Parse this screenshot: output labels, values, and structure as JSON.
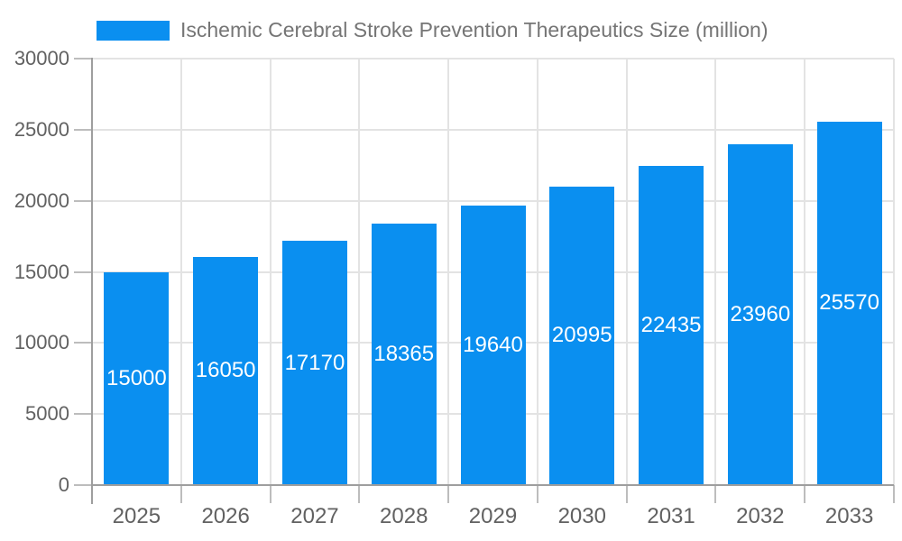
{
  "legend": {
    "label": "Ischemic Cerebral Stroke Prevention Therapeutics Size (million)"
  },
  "chart_data": {
    "type": "bar",
    "title": "Ischemic Cerebral Stroke Prevention Therapeutics Size (million)",
    "categories": [
      "2025",
      "2026",
      "2027",
      "2028",
      "2029",
      "2030",
      "2031",
      "2032",
      "2033"
    ],
    "series": [
      {
        "name": "Ischemic Cerebral Stroke Prevention Therapeutics Size (million)",
        "values": [
          15000,
          16050,
          17170,
          18365,
          19640,
          20995,
          22435,
          23960,
          25570
        ]
      }
    ],
    "data_labels": [
      "15000",
      "16050",
      "17170",
      "18365",
      "19640",
      "20995",
      "22435",
      "23960",
      "25570"
    ],
    "xlabel": "",
    "ylabel": "",
    "ylim": [
      0,
      30000
    ],
    "yticks": [
      0,
      5000,
      10000,
      15000,
      20000,
      25000,
      30000
    ],
    "ytick_labels": [
      "0",
      "5000",
      "10000",
      "15000",
      "20000",
      "25000",
      "30000"
    ],
    "grid": true,
    "legend_position": "top-left",
    "colors": {
      "bar": "#0A8FF0",
      "bar_label": "#FFFFFF",
      "axis_text": "#616161",
      "legend_text": "#757575",
      "gridline": "#E3E3E3",
      "axis_line": "#9E9E9E",
      "tick": "#BDBDBD",
      "background": "#FFFFFF"
    }
  }
}
